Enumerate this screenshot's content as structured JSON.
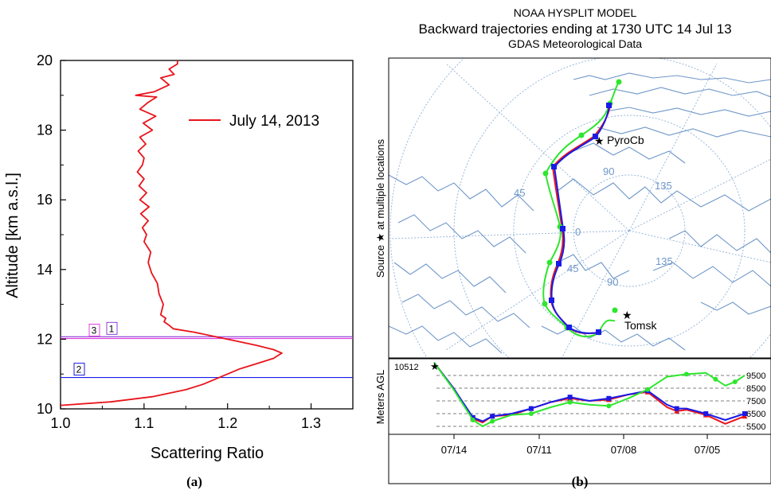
{
  "panel_labels": {
    "a": "(a)",
    "b": "(b)"
  },
  "colors": {
    "red": "#e8141b",
    "blue": "#1a1ae6",
    "green": "#2ee62e",
    "magenta": "#e040e0",
    "violet": "#8b3fd8",
    "map_line": "#6f97c8",
    "grid_line": "#8fb0d6"
  },
  "map": {
    "title_line1": "NOAA HYSPLIT MODEL",
    "title_line2": "Backward trajectories ending at 1730 UTC 14 Jul 13",
    "title_line3": "GDAS Meteorological Data",
    "side_label": "Source ★   at multiple locations",
    "source_label": "PyroCb",
    "end_label": "Tomsk",
    "grid_labels": [
      "45",
      "90",
      "135",
      "0",
      "45",
      "90",
      "135"
    ]
  },
  "chart_data": [
    {
      "type": "line",
      "panel": "a",
      "title": "",
      "xlabel": "Scattering Ratio",
      "ylabel": "Altitude [km a.s.l.]",
      "xlim": [
        1.0,
        1.35
      ],
      "ylim": [
        10,
        20
      ],
      "xticks": [
        "1.0",
        "1.1",
        "1.2",
        "1.3"
      ],
      "yticks": [
        "10",
        "12",
        "14",
        "16",
        "18",
        "20"
      ],
      "legend": "top-right",
      "series": [
        {
          "name": "July 14, 2013",
          "color": "#e8141b",
          "x": [
            1.0,
            1.06,
            1.11,
            1.15,
            1.17,
            1.185,
            1.2,
            1.215,
            1.235,
            1.255,
            1.265,
            1.255,
            1.235,
            1.21,
            1.19,
            1.16,
            1.135,
            1.13,
            1.124,
            1.126,
            1.12,
            1.123,
            1.118,
            1.116,
            1.109,
            1.105,
            1.108,
            1.1,
            1.103,
            1.098,
            1.105,
            1.096,
            1.106,
            1.095,
            1.103,
            1.094,
            1.1,
            1.092,
            1.098,
            1.1,
            1.093,
            1.102,
            1.095,
            1.11,
            1.099,
            1.114,
            1.095,
            1.105,
            1.115,
            1.09,
            1.112,
            1.13,
            1.12,
            1.136,
            1.13,
            1.14,
            1.14
          ],
          "y": [
            10.1,
            10.2,
            10.35,
            10.55,
            10.7,
            10.85,
            11.0,
            11.15,
            11.3,
            11.45,
            11.6,
            11.7,
            11.82,
            11.95,
            12.05,
            12.2,
            12.3,
            12.4,
            12.5,
            12.6,
            12.7,
            13.0,
            13.3,
            13.6,
            13.9,
            14.2,
            14.5,
            14.8,
            15.0,
            15.2,
            15.4,
            15.6,
            15.8,
            16.0,
            16.2,
            16.4,
            16.6,
            16.8,
            17.0,
            17.2,
            17.4,
            17.6,
            17.8,
            18.0,
            18.2,
            18.4,
            18.6,
            18.8,
            18.95,
            19.0,
            19.1,
            19.3,
            19.5,
            19.6,
            19.75,
            19.9,
            20.0
          ]
        }
      ],
      "horizontal_lines": [
        {
          "label": "1",
          "y": 12.07,
          "color": "#8b3fd8"
        },
        {
          "label": "3",
          "y": 12.02,
          "color": "#e040e0"
        },
        {
          "label": "2",
          "y": 10.9,
          "color": "#1a1ae6"
        }
      ]
    },
    {
      "type": "line",
      "panel": "b",
      "title": "",
      "xlabel": "",
      "ylabel": "Meters AGL",
      "xticks": [
        "07/14",
        "07/11",
        "07/08",
        "07/05"
      ],
      "yticks": [
        "5500",
        "6500",
        "7500",
        "8500",
        "9500"
      ],
      "ylim": [
        5000,
        10500
      ],
      "start_label": "10512",
      "legend": "none",
      "series": [
        {
          "color": "#e8141b",
          "x": [
            0,
            1,
            2,
            2.5,
            3,
            4,
            5,
            6,
            7,
            8,
            9,
            10,
            11,
            12,
            12.5,
            13,
            14,
            15,
            16
          ],
          "y": [
            10512,
            8500,
            6100,
            5800,
            6300,
            6400,
            6900,
            7400,
            7700,
            7500,
            7600,
            8000,
            8200,
            7000,
            6700,
            6800,
            6400,
            5700,
            6300
          ]
        },
        {
          "color": "#1a1ae6",
          "x": [
            0,
            1,
            2,
            2.5,
            3,
            4,
            5,
            6,
            7,
            8,
            9,
            10,
            11,
            12,
            12.5,
            13,
            14,
            15,
            16
          ],
          "y": [
            10512,
            8500,
            6200,
            5900,
            6300,
            6500,
            6900,
            7400,
            7800,
            7500,
            7700,
            8000,
            8300,
            7200,
            6900,
            6900,
            6500,
            6000,
            6500
          ]
        },
        {
          "color": "#2ee62e",
          "x": [
            0,
            1,
            2,
            2.5,
            3,
            4,
            5,
            6,
            7,
            8,
            9,
            10,
            11,
            12,
            13,
            14,
            14.5,
            15,
            15.5,
            16
          ],
          "y": [
            10512,
            8400,
            6000,
            5500,
            5900,
            6400,
            6500,
            7000,
            7400,
            7200,
            7100,
            7700,
            8400,
            9400,
            9600,
            9700,
            9200,
            8700,
            9000,
            9500
          ]
        }
      ]
    }
  ]
}
